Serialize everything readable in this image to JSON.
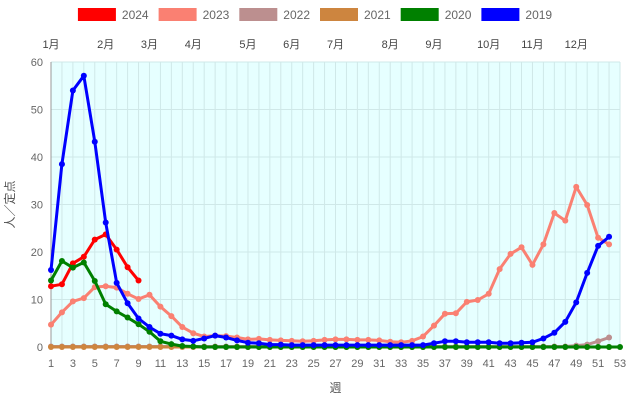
{
  "chart_data": {
    "type": "line",
    "xlabel": "週",
    "ylabel": "人／定点",
    "xlim": [
      1,
      53
    ],
    "ylim": [
      0,
      60
    ],
    "y_ticks": [
      0,
      10,
      20,
      30,
      40,
      50,
      60
    ],
    "x_ticks": [
      1,
      3,
      5,
      7,
      9,
      11,
      13,
      15,
      17,
      19,
      21,
      23,
      25,
      27,
      29,
      31,
      33,
      35,
      37,
      39,
      41,
      43,
      45,
      47,
      49,
      51,
      53
    ],
    "grid": true,
    "legend_position": "top",
    "months": [
      {
        "label": "1月",
        "week": 1
      },
      {
        "label": "2月",
        "week": 6
      },
      {
        "label": "3月",
        "week": 10
      },
      {
        "label": "4月",
        "week": 14
      },
      {
        "label": "5月",
        "week": 19
      },
      {
        "label": "6月",
        "week": 23
      },
      {
        "label": "7月",
        "week": 27
      },
      {
        "label": "8月",
        "week": 32
      },
      {
        "label": "9月",
        "week": 36
      },
      {
        "label": "10月",
        "week": 41
      },
      {
        "label": "11月",
        "week": 45
      },
      {
        "label": "12月",
        "week": 49
      }
    ],
    "series": [
      {
        "name": "2024",
        "color": "#ff0000",
        "values": [
          12.8,
          13.2,
          17.6,
          19.0,
          22.6,
          23.7,
          20.5,
          16.8,
          14.0
        ]
      },
      {
        "name": "2023",
        "color": "#fa8072",
        "values": [
          4.7,
          7.3,
          9.6,
          10.3,
          12.6,
          12.8,
          12.5,
          11.2,
          10.1,
          11.0,
          8.5,
          6.5,
          4.2,
          2.9,
          2.2,
          2.4,
          2.3,
          2.0,
          1.6,
          1.7,
          1.5,
          1.4,
          1.3,
          1.2,
          1.3,
          1.5,
          1.6,
          1.6,
          1.5,
          1.5,
          1.4,
          1.1,
          1.0,
          1.3,
          2.2,
          4.5,
          7.0,
          7.1,
          9.5,
          9.9,
          11.2,
          16.4,
          19.6,
          21.0,
          17.3,
          21.6,
          28.2,
          26.6,
          33.7,
          29.9,
          23.0,
          21.6
        ]
      },
      {
        "name": "2022",
        "color": "#bc8f8f",
        "values": [
          0.1,
          0.1,
          0.1,
          0.1,
          0.1,
          0.1,
          0.1,
          0.1,
          0.1,
          0.1,
          0.1,
          0.1,
          0.1,
          0.1,
          0.1,
          0.1,
          0.1,
          0.1,
          0.1,
          0.1,
          0.1,
          0.1,
          0.1,
          0.1,
          0.1,
          0.1,
          0.1,
          0.1,
          0.1,
          0.1,
          0.1,
          0.1,
          0.1,
          0.1,
          0.1,
          0.1,
          0.1,
          0.1,
          0.1,
          0.1,
          0.1,
          0.1,
          0.1,
          0.1,
          0.1,
          0.1,
          0.1,
          0.1,
          0.3,
          0.5,
          1.2,
          2.0
        ]
      },
      {
        "name": "2021",
        "color": "#cd853f",
        "values": [
          0.0,
          0.0,
          0.0,
          0.0,
          0.0,
          0.0,
          0.0,
          0.0,
          0.0,
          0.0,
          0.0,
          0.0,
          0.0,
          0.0,
          0.0,
          0.0,
          0.0,
          0.0,
          0.0,
          0.0,
          0.0,
          0.0,
          0.0,
          0.0,
          0.0,
          0.0,
          0.0,
          0.0,
          0.0,
          0.0,
          0.0,
          0.0,
          0.0,
          0.0,
          0.0,
          0.0,
          0.0,
          0.0,
          0.0,
          0.0,
          0.0,
          0.0,
          0.0,
          0.0,
          0.0,
          0.0,
          0.0,
          0.0,
          0.0,
          0.0,
          0.0,
          0.0
        ]
      },
      {
        "name": "2020",
        "color": "#008000",
        "values": [
          14.0,
          18.1,
          16.7,
          17.8,
          13.9,
          9.0,
          7.5,
          6.2,
          4.8,
          3.2,
          1.2,
          0.6,
          0.2,
          0.1,
          0.0,
          0.0,
          0.0,
          0.0,
          0.0,
          0.0,
          0.0,
          0.0,
          0.0,
          0.0,
          0.0,
          0.0,
          0.0,
          0.0,
          0.0,
          0.0,
          0.0,
          0.0,
          0.0,
          0.0,
          0.0,
          0.0,
          0.0,
          0.0,
          0.0,
          0.0,
          0.0,
          0.0,
          0.0,
          0.0,
          0.0,
          0.0,
          0.0,
          0.0,
          0.0,
          0.0,
          0.0,
          0.0,
          0.0
        ]
      },
      {
        "name": "2019",
        "color": "#0000ff",
        "values": [
          16.2,
          38.5,
          54.0,
          57.1,
          43.2,
          26.2,
          13.5,
          9.2,
          6.0,
          4.2,
          2.8,
          2.4,
          1.6,
          1.3,
          1.8,
          2.4,
          2.0,
          1.4,
          0.9,
          0.8,
          0.5,
          0.5,
          0.4,
          0.4,
          0.4,
          0.4,
          0.4,
          0.4,
          0.4,
          0.4,
          0.4,
          0.4,
          0.4,
          0.4,
          0.4,
          0.8,
          1.2,
          1.2,
          1.0,
          1.0,
          1.0,
          0.8,
          0.8,
          0.9,
          1.0,
          1.8,
          3.0,
          5.3,
          9.4,
          15.6,
          21.3,
          23.2
        ]
      }
    ]
  }
}
